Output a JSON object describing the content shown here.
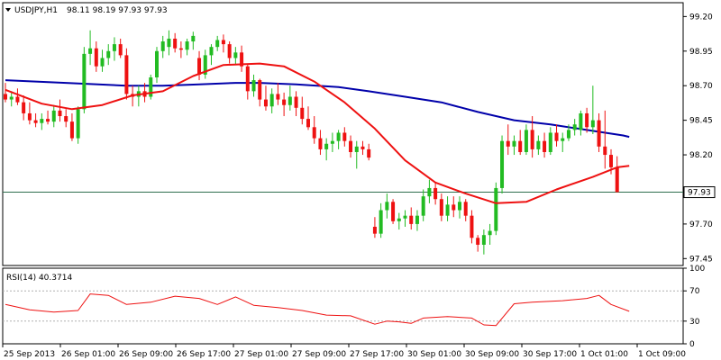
{
  "header": {
    "symbol": "USDJPY,H1",
    "ohlc": "98.11 98.19 97.93 97.93"
  },
  "price_tag": "97.93",
  "rsi_label": "RSI(14) 40.3714",
  "colors": {
    "bull": "#22bb22",
    "bear": "#ee1111",
    "ma_fast": "#ee1111",
    "ma_slow": "#0000aa",
    "rsi": "#ee1111",
    "current_line": "#2f6f4f",
    "frame": "#000000",
    "level_line": "#b0b0b0"
  },
  "chart_data": [
    {
      "type": "candlestick",
      "title": "USDJPY,H1",
      "ylim": [
        97.4,
        99.3
      ],
      "y_ticks": [
        "99.20",
        "98.95",
        "98.70",
        "98.45",
        "98.20",
        "97.95",
        "97.70",
        "97.45"
      ],
      "x_tick_labels": [
        "25 Sep 2013",
        "26 Sep 01:00",
        "26 Sep 09:00",
        "26 Sep 17:00",
        "27 Sep 01:00",
        "27 Sep 09:00",
        "27 Sep 17:00",
        "30 Sep 01:00",
        "30 Sep 09:00",
        "30 Sep 17:00",
        "1 Oct 01:00",
        "1 Oct 09:00"
      ],
      "current_price": 97.93,
      "candles": [
        [
          98.64,
          98.72,
          98.58,
          98.6
        ],
        [
          98.6,
          98.66,
          98.55,
          98.62
        ],
        [
          98.62,
          98.68,
          98.56,
          98.58
        ],
        [
          98.58,
          98.63,
          98.45,
          98.5
        ],
        [
          98.5,
          98.58,
          98.42,
          98.45
        ],
        [
          98.45,
          98.5,
          98.4,
          98.43
        ],
        [
          98.43,
          98.5,
          98.38,
          98.46
        ],
        [
          98.46,
          98.52,
          98.42,
          98.44
        ],
        [
          98.44,
          98.56,
          98.4,
          98.52
        ],
        [
          98.52,
          98.6,
          98.44,
          98.48
        ],
        [
          98.48,
          98.53,
          98.4,
          98.44
        ],
        [
          98.44,
          98.5,
          98.3,
          98.32
        ],
        [
          98.32,
          98.55,
          98.28,
          98.53
        ],
        [
          98.53,
          98.98,
          98.5,
          98.93
        ],
        [
          98.93,
          99.1,
          98.85,
          98.97
        ],
        [
          98.97,
          99.02,
          98.8,
          98.84
        ],
        [
          98.84,
          98.96,
          98.8,
          98.9
        ],
        [
          98.9,
          99.0,
          98.85,
          98.95
        ],
        [
          98.95,
          99.05,
          98.88,
          99.0
        ],
        [
          99.0,
          99.04,
          98.9,
          98.92
        ],
        [
          98.92,
          98.97,
          98.6,
          98.64
        ],
        [
          98.64,
          98.7,
          98.55,
          98.62
        ],
        [
          98.62,
          98.7,
          98.55,
          98.66
        ],
        [
          98.66,
          98.72,
          98.58,
          98.62
        ],
        [
          98.62,
          98.78,
          98.6,
          98.76
        ],
        [
          98.76,
          98.98,
          98.72,
          98.95
        ],
        [
          98.95,
          99.06,
          98.9,
          99.02
        ],
        [
          98.98,
          99.1,
          98.92,
          99.04
        ],
        [
          99.04,
          99.08,
          98.94,
          98.97
        ],
        [
          98.97,
          99.02,
          98.9,
          98.96
        ],
        [
          98.96,
          99.04,
          98.92,
          99.02
        ],
        [
          99.02,
          99.09,
          98.96,
          99.06
        ],
        [
          98.9,
          98.95,
          98.74,
          98.78
        ],
        [
          98.78,
          98.96,
          98.75,
          98.92
        ],
        [
          98.92,
          99.0,
          98.85,
          98.98
        ],
        [
          98.98,
          99.06,
          98.95,
          99.03
        ],
        [
          99.03,
          99.07,
          98.94,
          99.0
        ],
        [
          99.0,
          99.02,
          98.86,
          98.9
        ],
        [
          98.9,
          98.98,
          98.85,
          98.94
        ],
        [
          98.94,
          98.99,
          98.8,
          98.84
        ],
        [
          98.84,
          98.86,
          98.6,
          98.66
        ],
        [
          98.66,
          98.78,
          98.62,
          98.74
        ],
        [
          98.74,
          98.75,
          98.55,
          98.6
        ],
        [
          98.6,
          98.7,
          98.52,
          98.55
        ],
        [
          98.55,
          98.68,
          98.5,
          98.64
        ],
        [
          98.64,
          98.72,
          98.56,
          98.6
        ],
        [
          98.6,
          98.65,
          98.48,
          98.56
        ],
        [
          98.56,
          98.7,
          98.52,
          98.62
        ],
        [
          98.62,
          98.66,
          98.48,
          98.54
        ],
        [
          98.54,
          98.62,
          98.42,
          98.46
        ],
        [
          98.46,
          98.55,
          98.38,
          98.4
        ],
        [
          98.4,
          98.48,
          98.28,
          98.32
        ],
        [
          98.32,
          98.38,
          98.2,
          98.24
        ],
        [
          98.24,
          98.32,
          98.16,
          98.28
        ],
        [
          98.28,
          98.36,
          98.22,
          98.3
        ],
        [
          98.3,
          98.38,
          98.24,
          98.36
        ],
        [
          98.36,
          98.4,
          98.26,
          98.3
        ],
        [
          98.3,
          98.34,
          98.18,
          98.22
        ],
        [
          98.22,
          98.3,
          98.1,
          98.26
        ],
        [
          98.26,
          98.3,
          98.2,
          98.24
        ],
        [
          98.24,
          98.28,
          98.16,
          98.18
        ],
        [
          97.68,
          97.75,
          97.6,
          97.63
        ],
        [
          97.63,
          97.85,
          97.6,
          97.8
        ],
        [
          97.8,
          97.92,
          97.74,
          97.86
        ],
        [
          97.86,
          97.88,
          97.7,
          97.72
        ],
        [
          97.72,
          97.78,
          97.66,
          97.74
        ],
        [
          97.74,
          97.8,
          97.68,
          97.76
        ],
        [
          97.76,
          97.82,
          97.66,
          97.7
        ],
        [
          97.7,
          97.8,
          97.65,
          97.76
        ],
        [
          97.76,
          97.95,
          97.72,
          97.9
        ],
        [
          97.9,
          98.02,
          97.85,
          97.96
        ],
        [
          97.96,
          98.0,
          97.84,
          97.88
        ],
        [
          97.88,
          97.92,
          97.72,
          97.76
        ],
        [
          97.76,
          97.9,
          97.72,
          97.84
        ],
        [
          97.84,
          97.9,
          97.75,
          97.8
        ],
        [
          97.8,
          97.9,
          97.74,
          97.86
        ],
        [
          97.86,
          97.88,
          97.72,
          97.76
        ],
        [
          97.76,
          97.8,
          97.56,
          97.6
        ],
        [
          97.6,
          97.62,
          97.5,
          97.55
        ],
        [
          97.55,
          97.66,
          97.48,
          97.62
        ],
        [
          97.62,
          97.7,
          97.55,
          97.65
        ],
        [
          97.65,
          98.0,
          97.62,
          97.96
        ],
        [
          97.96,
          98.34,
          97.92,
          98.3
        ],
        [
          98.3,
          98.42,
          98.2,
          98.26
        ],
        [
          98.26,
          98.34,
          98.2,
          98.3
        ],
        [
          98.3,
          98.38,
          98.2,
          98.22
        ],
        [
          98.22,
          98.42,
          98.2,
          98.38
        ],
        [
          98.38,
          98.48,
          98.18,
          98.24
        ],
        [
          98.24,
          98.34,
          98.2,
          98.3
        ],
        [
          98.3,
          98.36,
          98.18,
          98.22
        ],
        [
          98.22,
          98.4,
          98.2,
          98.36
        ],
        [
          98.36,
          98.42,
          98.26,
          98.3
        ],
        [
          98.3,
          98.36,
          98.22,
          98.32
        ],
        [
          98.32,
          98.42,
          98.3,
          98.38
        ],
        [
          98.38,
          98.46,
          98.34,
          98.42
        ],
        [
          98.38,
          98.52,
          98.34,
          98.5
        ],
        [
          98.5,
          98.54,
          98.36,
          98.4
        ],
        [
          98.4,
          98.7,
          98.35,
          98.45
        ],
        [
          98.45,
          98.5,
          98.22,
          98.26
        ],
        [
          98.26,
          98.52,
          98.1,
          98.2
        ],
        [
          98.2,
          98.24,
          98.06,
          98.11
        ],
        [
          98.11,
          98.19,
          97.93,
          97.93
        ]
      ],
      "series": [
        {
          "name": "",
          "color": "#0000aa",
          "values": [
            [
              0,
              98.74
            ],
            [
              10,
              98.72
            ],
            [
              20,
              98.7
            ],
            [
              26,
              98.7
            ],
            [
              32,
              98.71
            ],
            [
              38,
              98.72
            ],
            [
              42,
              98.72
            ],
            [
              48,
              98.71
            ],
            [
              55,
              98.69
            ],
            [
              60,
              98.66
            ],
            [
              66,
              98.62
            ],
            [
              72,
              98.58
            ],
            [
              78,
              98.51
            ],
            [
              84,
              98.45
            ],
            [
              90,
              98.42
            ],
            [
              96,
              98.38
            ],
            [
              102,
              98.34
            ],
            [
              103,
              98.33
            ]
          ]
        },
        {
          "name": "",
          "color": "#ee1111",
          "values": [
            [
              0,
              98.67
            ],
            [
              6,
              98.57
            ],
            [
              11,
              98.53
            ],
            [
              16,
              98.56
            ],
            [
              21,
              98.63
            ],
            [
              26,
              98.66
            ],
            [
              31,
              98.77
            ],
            [
              36,
              98.85
            ],
            [
              42,
              98.86
            ],
            [
              46,
              98.84
            ],
            [
              51,
              98.73
            ],
            [
              56,
              98.58
            ],
            [
              61,
              98.39
            ],
            [
              66,
              98.16
            ],
            [
              71,
              98.0
            ],
            [
              76,
              97.92
            ],
            [
              81,
              97.85
            ],
            [
              86,
              97.86
            ],
            [
              91,
              97.95
            ],
            [
              97,
              98.04
            ],
            [
              101,
              98.11
            ],
            [
              103,
              98.12
            ]
          ]
        }
      ]
    },
    {
      "type": "line",
      "title": "RSI(14) 40.3714",
      "ylim": [
        0,
        100
      ],
      "y_ticks": [
        "100",
        "70",
        "30",
        "0"
      ],
      "levels": [
        30,
        70
      ],
      "series": [
        {
          "name": "",
          "color": "#ee1111",
          "values": [
            [
              0,
              52
            ],
            [
              4,
              45
            ],
            [
              8,
              42
            ],
            [
              12,
              44
            ],
            [
              14,
              66
            ],
            [
              17,
              64
            ],
            [
              20,
              52
            ],
            [
              24,
              55
            ],
            [
              28,
              63
            ],
            [
              32,
              60
            ],
            [
              35,
              52
            ],
            [
              38,
              62
            ],
            [
              41,
              51
            ],
            [
              45,
              48
            ],
            [
              49,
              44
            ],
            [
              53,
              38
            ],
            [
              57,
              37
            ],
            [
              61,
              26
            ],
            [
              63,
              30
            ],
            [
              65,
              29
            ],
            [
              67,
              27
            ],
            [
              69,
              34
            ],
            [
              73,
              36
            ],
            [
              77,
              34
            ],
            [
              79,
              25
            ],
            [
              81,
              24
            ],
            [
              84,
              53
            ],
            [
              87,
              55
            ],
            [
              92,
              57
            ],
            [
              96,
              60
            ],
            [
              98,
              64
            ],
            [
              100,
              52
            ],
            [
              103,
              43
            ]
          ]
        }
      ]
    }
  ]
}
